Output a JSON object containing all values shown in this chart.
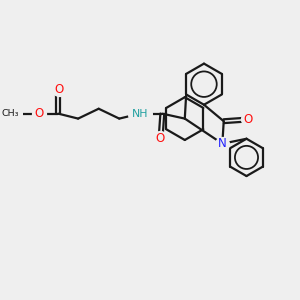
{
  "bg_color": "#efefef",
  "bond_color": "#1a1a1a",
  "bond_width": 1.6,
  "N_color": "#2020ff",
  "O_color": "#ff1010",
  "NH_color": "#20a0a0",
  "fig_width": 3.0,
  "fig_height": 3.0,
  "xlim": [
    0,
    10
  ],
  "ylim": [
    0,
    10
  ]
}
